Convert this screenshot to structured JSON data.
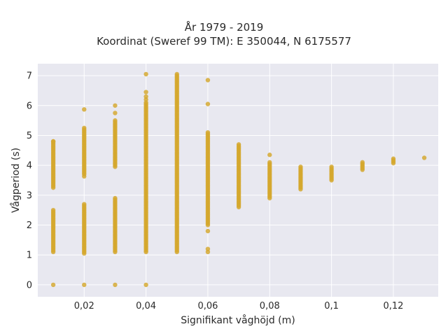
{
  "chart_data": {
    "type": "scatter",
    "title": "År 1979 - 2019",
    "subtitle": "Koordinat (Sweref 99 TM): E 350044, N 6175577",
    "xlabel": "Signifikant våghöjd (m)",
    "ylabel": "Vågperiod (s)",
    "xlim": [
      0.005,
      0.1345
    ],
    "ylim": [
      -0.4,
      7.4
    ],
    "x_ticks": [
      {
        "value": 0.02,
        "label": "0,02"
      },
      {
        "value": 0.04,
        "label": "0,04"
      },
      {
        "value": 0.06,
        "label": "0,06"
      },
      {
        "value": 0.08,
        "label": "0,08"
      },
      {
        "value": 0.1,
        "label": "0,1"
      },
      {
        "value": 0.12,
        "label": "0,12"
      }
    ],
    "y_ticks": [
      {
        "value": 0,
        "label": "0"
      },
      {
        "value": 1,
        "label": "1"
      },
      {
        "value": 2,
        "label": "2"
      },
      {
        "value": 3,
        "label": "3"
      },
      {
        "value": 4,
        "label": "4"
      },
      {
        "value": 5,
        "label": "5"
      },
      {
        "value": 6,
        "label": "6"
      },
      {
        "value": 7,
        "label": "7"
      }
    ],
    "grid": true,
    "legend": "none",
    "color": "#d4a72c",
    "plot_bg": "#e8e8f0",
    "column_segments": [
      {
        "x": 0.01,
        "ranges": [
          [
            3.3,
            4.8
          ],
          [
            1.1,
            2.5
          ]
        ],
        "points": [
          0,
          4.8,
          3.25
        ]
      },
      {
        "x": 0.02,
        "ranges": [
          [
            3.7,
            5.25
          ],
          [
            1.05,
            2.7
          ]
        ],
        "points": [
          0,
          5.87,
          3.63
        ]
      },
      {
        "x": 0.03,
        "ranges": [
          [
            3.95,
            5.5
          ],
          [
            1.1,
            2.9
          ]
        ],
        "points": [
          0,
          6.0,
          5.75
        ]
      },
      {
        "x": 0.04,
        "ranges": [
          [
            1.1,
            6.1
          ]
        ],
        "points": [
          0,
          6.2,
          6.3,
          6.45,
          7.05
        ]
      },
      {
        "x": 0.05,
        "ranges": [
          [
            1.1,
            7.0
          ]
        ],
        "points": [
          7.05
        ]
      },
      {
        "x": 0.06,
        "ranges": [
          [
            2.0,
            5.1
          ]
        ],
        "points": [
          1.1,
          1.2,
          1.8,
          6.05,
          6.85
        ]
      },
      {
        "x": 0.07,
        "ranges": [
          [
            2.6,
            4.7
          ]
        ],
        "points": []
      },
      {
        "x": 0.08,
        "ranges": [
          [
            2.9,
            4.1
          ]
        ],
        "points": [
          4.35
        ]
      },
      {
        "x": 0.09,
        "ranges": [
          [
            3.2,
            3.95
          ]
        ],
        "points": []
      },
      {
        "x": 0.1,
        "ranges": [
          [
            3.5,
            3.98
          ]
        ],
        "points": []
      },
      {
        "x": 0.11,
        "ranges": [
          [
            3.85,
            4.12
          ]
        ],
        "points": []
      },
      {
        "x": 0.12,
        "ranges": [
          [
            4.07,
            4.22
          ]
        ],
        "points": []
      },
      {
        "x": 0.13,
        "ranges": [],
        "points": [
          4.25
        ]
      }
    ]
  }
}
